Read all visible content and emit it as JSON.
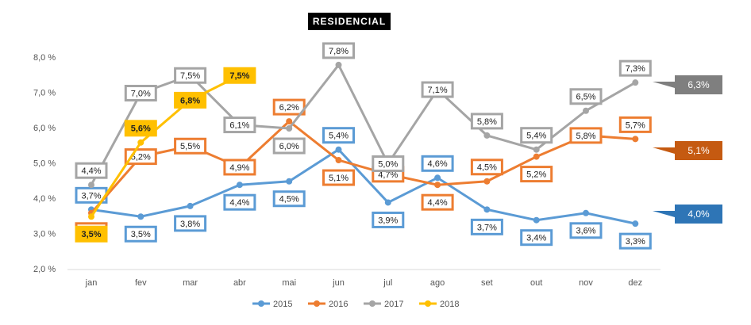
{
  "chart_data": {
    "type": "line",
    "title": "RESIDENCIAL",
    "categories": [
      "jan",
      "fev",
      "mar",
      "abr",
      "mai",
      "jun",
      "jul",
      "ago",
      "set",
      "out",
      "nov",
      "dez"
    ],
    "ylim": [
      2,
      8
    ],
    "yticks": [
      {
        "value": 2,
        "label": "2,0 %"
      },
      {
        "value": 3,
        "label": "3,0 %"
      },
      {
        "value": 4,
        "label": "4,0 %"
      },
      {
        "value": 5,
        "label": "5,0 %"
      },
      {
        "value": 6,
        "label": "6,0 %"
      },
      {
        "value": 7,
        "label": "7,0 %"
      },
      {
        "value": 8,
        "label": "8,0 %"
      }
    ],
    "grid": false,
    "legend": "bottom",
    "series": [
      {
        "name": "2015",
        "color": "#5b9bd5",
        "values": [
          3.7,
          3.5,
          3.8,
          4.4,
          4.5,
          5.4,
          3.9,
          4.6,
          3.7,
          3.4,
          3.6,
          3.3
        ],
        "value_labels": [
          "3,7%",
          "3,5%",
          "3,8%",
          "4,4%",
          "4,5%",
          "5,4%",
          "3,9%",
          "4,6%",
          "3,7%",
          "3,4%",
          "3,6%",
          "3,3%"
        ]
      },
      {
        "name": "2016",
        "color": "#ed7d31",
        "values": [
          3.6,
          5.2,
          5.5,
          4.9,
          6.2,
          5.1,
          4.7,
          4.4,
          4.5,
          5.2,
          5.8,
          5.7
        ],
        "value_labels": [
          "3,6%",
          "5,2%",
          "5,5%",
          "4,9%",
          "6,2%",
          "5,1%",
          "4,7%",
          "4,4%",
          "4,5%",
          "5,2%",
          "5,8%",
          "5,7%"
        ]
      },
      {
        "name": "2017",
        "color": "#a5a5a5",
        "values": [
          4.4,
          7.0,
          7.5,
          6.1,
          6.0,
          7.8,
          5.0,
          7.1,
          5.8,
          5.4,
          6.5,
          7.3
        ],
        "value_labels": [
          "4,4%",
          "7,0%",
          "7,5%",
          "6,1%",
          "6,0%",
          "7,8%",
          "5,0%",
          "7,1%",
          "5,8%",
          "5,4%",
          "6,5%",
          "7,3%"
        ]
      },
      {
        "name": "2018",
        "color": "#ffc000",
        "values": [
          3.5,
          5.6,
          6.8,
          7.5,
          null,
          null,
          null,
          null,
          null,
          null,
          null,
          null
        ],
        "value_labels": [
          "3,5%",
          "5,6%",
          "6,8%",
          "7,5%",
          null,
          null,
          null,
          null,
          null,
          null,
          null,
          null
        ]
      }
    ],
    "annotations": [
      {
        "text": "6,3%",
        "color": "#7f7f7f"
      },
      {
        "text": "5,1%",
        "color": "#c55a11"
      },
      {
        "text": "4,0%",
        "color": "#2e75b6"
      }
    ]
  }
}
